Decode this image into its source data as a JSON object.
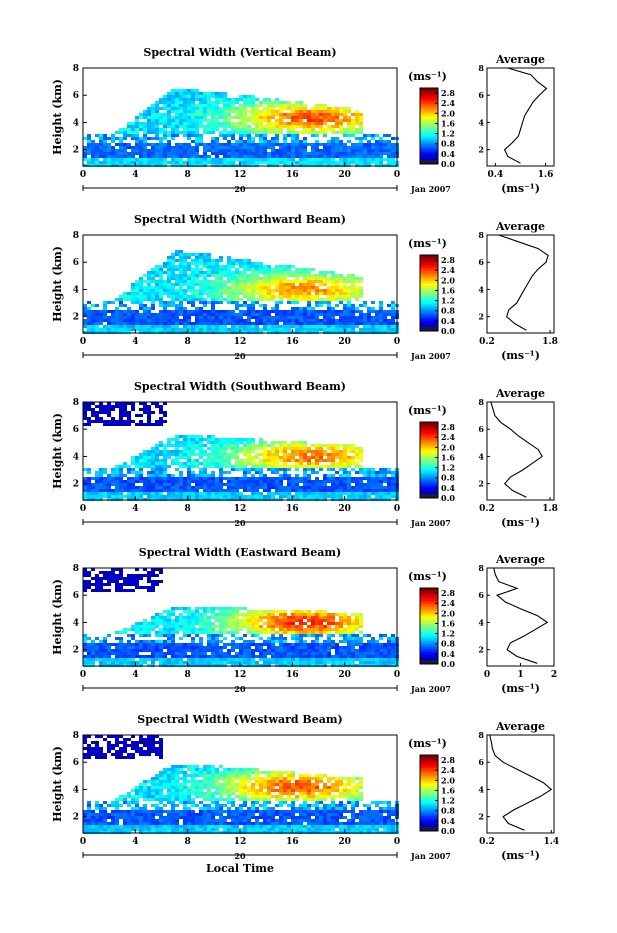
{
  "figure": {
    "xlabel": "Local Time",
    "date_label": "Jan 2007",
    "day_label": "20",
    "ylabel": "Height (km)",
    "colorbar_unit": "(ms⁻¹)",
    "avg_title": "Average",
    "avg_xlabel": "(ms⁻¹)"
  },
  "chart_data": [
    {
      "type": "heatmap",
      "title": "Spectral Width (Vertical Beam)",
      "xlabel": "",
      "ylabel": "Height (km)",
      "xticks": [
        "0",
        "4",
        "8",
        "12",
        "16",
        "20",
        "0"
      ],
      "xlim": [
        0,
        24
      ],
      "yticks": [
        "2",
        "4",
        "6",
        "8"
      ],
      "ylim": [
        0.8,
        8
      ],
      "colorbar": {
        "ticks": [
          "0.0",
          "0.4",
          "0.8",
          "1.2",
          "1.6",
          "2.0",
          "2.4",
          "2.8"
        ],
        "range": [
          0,
          3.0
        ]
      },
      "features": {
        "low_width": 0.55,
        "layer_top": 6.5,
        "peak_width": 2.4,
        "peak_time": 17.5,
        "peak_height": 4.3,
        "upper_dropout_start": 0,
        "upper_dropout_end": 0
      },
      "average": {
        "title": "Average",
        "xticks": [
          "0.4",
          "1.6"
        ],
        "xlim": [
          0.2,
          1.8
        ],
        "yticks": [
          "2",
          "4",
          "6",
          "8"
        ],
        "ylim": [
          0.8,
          8
        ],
        "heights": [
          1.0,
          1.5,
          2.0,
          2.5,
          3.0,
          3.5,
          4.0,
          4.5,
          5.0,
          5.5,
          6.0,
          6.5,
          7.0,
          7.5,
          8.0
        ],
        "values": [
          1.0,
          0.7,
          0.62,
          0.8,
          0.95,
          1.0,
          1.05,
          1.1,
          1.2,
          1.3,
          1.45,
          1.62,
          1.4,
          1.25,
          0.7
        ]
      }
    },
    {
      "type": "heatmap",
      "title": "Spectral Width (Northward Beam)",
      "xlabel": "",
      "ylabel": "Height (km)",
      "xticks": [
        "0",
        "4",
        "8",
        "12",
        "16",
        "20",
        "0"
      ],
      "xlim": [
        0,
        24
      ],
      "yticks": [
        "2",
        "4",
        "6",
        "8"
      ],
      "ylim": [
        0.8,
        8
      ],
      "colorbar": {
        "ticks": [
          "0.0",
          "0.4",
          "0.8",
          "1.2",
          "1.6",
          "2.0",
          "2.4",
          "2.8"
        ],
        "range": [
          0,
          3.0
        ]
      },
      "features": {
        "low_width": 0.5,
        "layer_top": 6.8,
        "peak_width": 2.2,
        "peak_time": 17.0,
        "peak_height": 4.0,
        "upper_dropout_start": 0,
        "upper_dropout_end": 0
      },
      "average": {
        "title": "Average",
        "xticks": [
          "0.2",
          "1.8"
        ],
        "xlim": [
          0.2,
          1.9
        ],
        "yticks": [
          "2",
          "4",
          "6",
          "8"
        ],
        "ylim": [
          0.8,
          8
        ],
        "heights": [
          1.0,
          1.5,
          2.0,
          2.5,
          3.0,
          3.5,
          4.0,
          4.5,
          5.0,
          5.5,
          6.0,
          6.5,
          7.0,
          7.5,
          8.0
        ],
        "values": [
          1.2,
          0.9,
          0.7,
          0.75,
          0.95,
          1.05,
          1.15,
          1.25,
          1.35,
          1.5,
          1.7,
          1.75,
          1.5,
          1.0,
          0.5
        ]
      }
    },
    {
      "type": "heatmap",
      "title": "Spectral Width (Southward Beam)",
      "xlabel": "",
      "ylabel": "Height (km)",
      "xticks": [
        "0",
        "4",
        "8",
        "12",
        "16",
        "20",
        "0"
      ],
      "xlim": [
        0,
        24
      ],
      "yticks": [
        "2",
        "4",
        "6",
        "8"
      ],
      "ylim": [
        0.8,
        8
      ],
      "colorbar": {
        "ticks": [
          "0.0",
          "0.4",
          "0.8",
          "1.2",
          "1.6",
          "2.0",
          "2.4",
          "2.8"
        ],
        "range": [
          0,
          3.0
        ]
      },
      "features": {
        "low_width": 0.5,
        "layer_top": 5.6,
        "peak_width": 2.3,
        "peak_time": 17.5,
        "peak_height": 4.0,
        "upper_dropout_start": 0,
        "upper_dropout_end": 6.5
      },
      "average": {
        "title": "Average",
        "xticks": [
          "0.2",
          "1.8"
        ],
        "xlim": [
          0.2,
          1.9
        ],
        "yticks": [
          "2",
          "4",
          "6",
          "8"
        ],
        "ylim": [
          0.8,
          8
        ],
        "heights": [
          1.0,
          1.5,
          2.0,
          2.5,
          3.0,
          3.5,
          4.0,
          4.5,
          5.0,
          5.5,
          6.0,
          6.5,
          7.0,
          7.5,
          8.0
        ],
        "values": [
          1.2,
          0.85,
          0.65,
          0.8,
          1.1,
          1.35,
          1.6,
          1.5,
          1.25,
          1.0,
          0.8,
          0.55,
          0.4,
          0.35,
          0.3
        ]
      }
    },
    {
      "type": "heatmap",
      "title": "Spectral Width (Eastward Beam)",
      "xlabel": "",
      "ylabel": "Height (km)",
      "xticks": [
        "0",
        "4",
        "8",
        "12",
        "16",
        "20",
        "0"
      ],
      "xlim": [
        0,
        24
      ],
      "yticks": [
        "2",
        "4",
        "6",
        "8"
      ],
      "ylim": [
        0.8,
        8
      ],
      "colorbar": {
        "ticks": [
          "0.0",
          "0.4",
          "0.8",
          "1.2",
          "1.6",
          "2.0",
          "2.4",
          "2.8"
        ],
        "range": [
          0,
          3.0
        ]
      },
      "features": {
        "low_width": 0.5,
        "layer_top": 5.2,
        "peak_width": 2.5,
        "peak_time": 17.0,
        "peak_height": 4.0,
        "upper_dropout_start": 0,
        "upper_dropout_end": 6.0
      },
      "average": {
        "title": "Average",
        "xticks": [
          "0",
          "1",
          "2"
        ],
        "xlim": [
          0,
          2
        ],
        "yticks": [
          "2",
          "4",
          "6",
          "8"
        ],
        "ylim": [
          0.8,
          8
        ],
        "heights": [
          1.0,
          1.5,
          2.0,
          2.5,
          3.0,
          3.5,
          4.0,
          4.5,
          5.0,
          5.5,
          6.0,
          6.5,
          7.0,
          7.5,
          8.0
        ],
        "values": [
          1.5,
          0.9,
          0.6,
          0.7,
          1.1,
          1.45,
          1.8,
          1.5,
          1.0,
          0.55,
          0.3,
          0.9,
          0.35,
          0.25,
          0.2
        ]
      }
    },
    {
      "type": "heatmap",
      "title": "Spectral Width (Westward Beam)",
      "xlabel": "Local Time",
      "ylabel": "Height (km)",
      "xticks": [
        "0",
        "4",
        "8",
        "12",
        "16",
        "20",
        "0"
      ],
      "xlim": [
        0,
        24
      ],
      "yticks": [
        "2",
        "4",
        "6",
        "8"
      ],
      "ylim": [
        0.8,
        8
      ],
      "colorbar": {
        "ticks": [
          "0.0",
          "0.4",
          "0.8",
          "1.2",
          "1.6",
          "2.0",
          "2.4",
          "2.8"
        ],
        "range": [
          0,
          3.0
        ]
      },
      "features": {
        "low_width": 0.5,
        "layer_top": 5.9,
        "peak_width": 2.4,
        "peak_time": 16.5,
        "peak_height": 4.2,
        "upper_dropout_start": 0,
        "upper_dropout_end": 6.2
      },
      "average": {
        "title": "Average",
        "xticks": [
          "0.2",
          "1.4"
        ],
        "xlim": [
          0.2,
          1.45
        ],
        "yticks": [
          "2",
          "4",
          "6",
          "8"
        ],
        "ylim": [
          0.8,
          8
        ],
        "heights": [
          1.0,
          1.5,
          2.0,
          2.5,
          3.0,
          3.5,
          4.0,
          4.5,
          5.0,
          5.5,
          6.0,
          6.5,
          7.0,
          7.5,
          8.0
        ],
        "values": [
          0.9,
          0.6,
          0.5,
          0.7,
          0.95,
          1.2,
          1.4,
          1.25,
          1.0,
          0.75,
          0.5,
          0.35,
          0.3,
          0.28,
          0.25
        ]
      }
    }
  ]
}
